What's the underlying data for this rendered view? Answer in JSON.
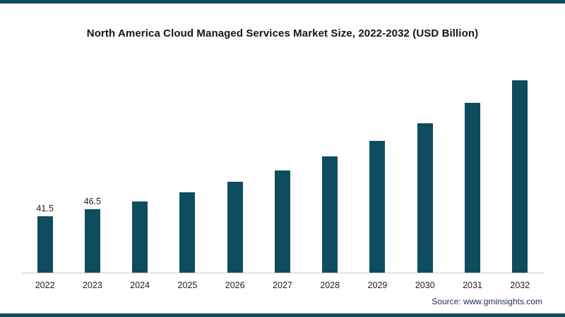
{
  "title": "North America Cloud Managed Services Market Size, 2022-2032 (USD Billion)",
  "source": "Source: www.gminsights.com",
  "colors": {
    "bar": "#0e4d5f",
    "frame": "#0b4b5c",
    "axis": "#c9c9c9"
  },
  "chart_data": {
    "type": "bar",
    "title": "North America Cloud Managed Services Market Size, 2022-2032 (USD Billion)",
    "categories": [
      "2022",
      "2023",
      "2024",
      "2025",
      "2026",
      "2027",
      "2028",
      "2029",
      "2030",
      "2031",
      "2032"
    ],
    "values": [
      41.5,
      46.5,
      52.4,
      59,
      66.5,
      75.2,
      85.5,
      96.5,
      109.5,
      124.5,
      141
    ],
    "data_labels": [
      "41.5",
      "46.5",
      "",
      "",
      "",
      "",
      "",
      "",
      "",
      "",
      ""
    ],
    "xlabel": "",
    "ylabel": "",
    "ylim": [
      0,
      150
    ],
    "grid": false,
    "legend": false,
    "bar_color": "#0e4d5f"
  }
}
